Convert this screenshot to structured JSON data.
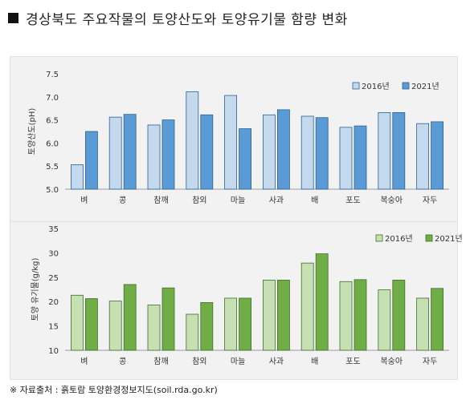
{
  "title": "경상북도 주요작물의 토양산도와 토양유기물 함량 변화",
  "source": "※ 자료출처 : 흙토람 토양환경정보지도(soil.rda.go.kr)",
  "colors": {
    "chart1_2016": "#c5d9ee",
    "chart1_2021": "#5b9bd5",
    "chart1_edge": "#2e5f8e",
    "chart2_2016": "#c6e0b4",
    "chart2_2021": "#70ad47",
    "chart2_edge": "#3f6e2a"
  },
  "chart_data": [
    {
      "type": "bar",
      "title": "",
      "xlabel": "",
      "ylabel": "토양산도(pH)",
      "ylim": [
        5.0,
        7.5
      ],
      "yticks": [
        "5.0",
        "5.5",
        "6.0",
        "6.5",
        "7.0",
        "7.5"
      ],
      "grid": false,
      "legend": "top-right",
      "categories": [
        "벼",
        "콩",
        "참깨",
        "참외",
        "마늘",
        "사과",
        "배",
        "포도",
        "복숭아",
        "자두"
      ],
      "series": [
        {
          "name": "2016년",
          "values": [
            5.53,
            6.56,
            6.39,
            7.11,
            7.03,
            6.61,
            6.58,
            6.34,
            6.66,
            6.42
          ]
        },
        {
          "name": "2021년",
          "values": [
            6.25,
            6.62,
            6.5,
            6.61,
            6.31,
            6.72,
            6.55,
            6.37,
            6.66,
            6.46
          ]
        }
      ]
    },
    {
      "type": "bar",
      "title": "",
      "xlabel": "",
      "ylabel": "토양 유기물(g/kg)",
      "ylim": [
        10,
        35
      ],
      "yticks": [
        "10",
        "15",
        "20",
        "25",
        "30",
        "35"
      ],
      "grid": false,
      "legend": "top-right",
      "categories": [
        "벼",
        "콩",
        "참깨",
        "참외",
        "마늘",
        "사과",
        "배",
        "포도",
        "복숭아",
        "자두"
      ],
      "series": [
        {
          "name": "2016년",
          "values": [
            21.3,
            20.1,
            19.3,
            17.4,
            20.7,
            24.4,
            27.9,
            24.1,
            22.4,
            20.7
          ]
        },
        {
          "name": "2021년",
          "values": [
            20.6,
            23.5,
            22.8,
            19.8,
            20.7,
            24.4,
            29.8,
            24.5,
            24.4,
            22.7
          ]
        }
      ]
    }
  ]
}
